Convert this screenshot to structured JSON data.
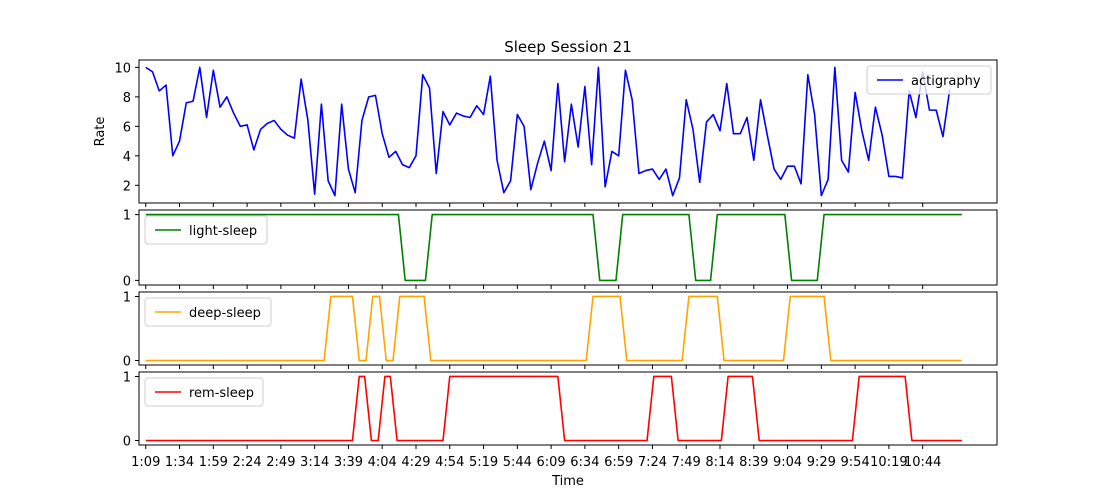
{
  "chart_data": {
    "type": "line",
    "title": "Sleep Session 21",
    "xlabel": "Time",
    "x_tick_labels": [
      "1:09",
      "1:34",
      "1:59",
      "2:24",
      "2:49",
      "3:14",
      "3:39",
      "4:04",
      "4:29",
      "4:54",
      "5:19",
      "5:44",
      "6:09",
      "6:34",
      "6:59",
      "7:24",
      "7:49",
      "8:14",
      "8:39",
      "9:04",
      "9:29",
      "9:54",
      "10:19",
      "10:44"
    ],
    "x_start": 0,
    "x_tick_step": 25,
    "xlim": [
      -5,
      630
    ],
    "panels": [
      {
        "ylabel": "Rate",
        "ylim": [
          0.8,
          10.5
        ],
        "yticks": [
          2,
          4,
          6,
          8,
          10
        ],
        "legend_position": "top-right",
        "series": [
          {
            "name": "actigraphy",
            "color": "#0000ff",
            "x_step": 5,
            "values": [
              10.0,
              9.7,
              8.4,
              8.8,
              4.0,
              5.0,
              7.6,
              7.7,
              10.0,
              6.6,
              9.8,
              7.3,
              8.0,
              6.9,
              6.0,
              6.1,
              4.4,
              5.8,
              6.2,
              6.4,
              5.8,
              5.4,
              5.2,
              9.2,
              6.4,
              1.4,
              7.5,
              2.3,
              1.3,
              7.5,
              3.1,
              1.5,
              6.4,
              8.0,
              8.1,
              5.5,
              3.9,
              4.3,
              3.4,
              3.2,
              4.0,
              9.5,
              8.6,
              2.8,
              7.0,
              6.1,
              6.9,
              6.7,
              6.6,
              7.4,
              6.8,
              9.4,
              3.7,
              1.5,
              2.3,
              6.8,
              6.0,
              1.7,
              3.5,
              5.0,
              3.0,
              8.9,
              3.6,
              7.5,
              4.6,
              8.7,
              3.4,
              10.0,
              1.9,
              4.3,
              4.0,
              9.8,
              7.8,
              2.8,
              3.0,
              3.1,
              2.4,
              3.1,
              1.3,
              2.5,
              7.8,
              5.8,
              2.2,
              6.3,
              6.8,
              5.7,
              8.9,
              5.5,
              5.5,
              6.6,
              3.7,
              7.8,
              5.4,
              3.1,
              2.4,
              3.3,
              3.3,
              2.1,
              9.5,
              6.8,
              1.3,
              2.4,
              10.0,
              3.7,
              2.9,
              8.3,
              5.7,
              3.7,
              7.3,
              5.4,
              2.6,
              2.6,
              2.5,
              8.4,
              6.6,
              9.7,
              7.1,
              7.1,
              5.3,
              8.5
            ]
          }
        ]
      },
      {
        "ylabel": "",
        "ylim": [
          -0.07,
          1.07
        ],
        "yticks": [
          0,
          1
        ],
        "legend_position": "top-left",
        "series": [
          {
            "name": "light-sleep",
            "color": "#008000",
            "points": [
              [
                0,
                1
              ],
              [
                187,
                1
              ],
              [
                192,
                0
              ],
              [
                207,
                0
              ],
              [
                212,
                1
              ],
              [
                331,
                1
              ],
              [
                336,
                0
              ],
              [
                348,
                0
              ],
              [
                353,
                1
              ],
              [
                402,
                1
              ],
              [
                407,
                0
              ],
              [
                418,
                0
              ],
              [
                423,
                1
              ],
              [
                473,
                1
              ],
              [
                478,
                0
              ],
              [
                497,
                0
              ],
              [
                502,
                1
              ],
              [
                604,
                1
              ]
            ]
          }
        ]
      },
      {
        "ylabel": "",
        "ylim": [
          -0.07,
          1.07
        ],
        "yticks": [
          0,
          1
        ],
        "legend_position": "top-left",
        "series": [
          {
            "name": "deep-sleep",
            "color": "#ffa500",
            "points": [
              [
                0,
                0
              ],
              [
                132,
                0
              ],
              [
                137,
                1
              ],
              [
                153,
                1
              ],
              [
                158,
                0
              ],
              [
                163,
                0
              ],
              [
                168,
                1
              ],
              [
                173,
                1
              ],
              [
                178,
                0
              ],
              [
                183,
                0
              ],
              [
                188,
                1
              ],
              [
                206,
                1
              ],
              [
                211,
                0
              ],
              [
                326,
                0
              ],
              [
                331,
                1
              ],
              [
                351,
                1
              ],
              [
                356,
                0
              ],
              [
                397,
                0
              ],
              [
                402,
                1
              ],
              [
                423,
                1
              ],
              [
                428,
                0
              ],
              [
                472,
                0
              ],
              [
                477,
                1
              ],
              [
                502,
                1
              ],
              [
                507,
                0
              ],
              [
                604,
                0
              ]
            ]
          }
        ]
      },
      {
        "ylabel": "",
        "ylim": [
          -0.07,
          1.07
        ],
        "yticks": [
          0,
          1
        ],
        "legend_position": "top-left",
        "series": [
          {
            "name": "rem-sleep",
            "color": "#ff0000",
            "points": [
              [
                0,
                0
              ],
              [
                153,
                0
              ],
              [
                158,
                1
              ],
              [
                162,
                1
              ],
              [
                167,
                0
              ],
              [
                172,
                0
              ],
              [
                177,
                1
              ],
              [
                181,
                1
              ],
              [
                186,
                0
              ],
              [
                220,
                0
              ],
              [
                225,
                1
              ],
              [
                305,
                1
              ],
              [
                310,
                0
              ],
              [
                371,
                0
              ],
              [
                376,
                1
              ],
              [
                389,
                1
              ],
              [
                394,
                0
              ],
              [
                426,
                0
              ],
              [
                431,
                1
              ],
              [
                449,
                1
              ],
              [
                454,
                0
              ],
              [
                523,
                0
              ],
              [
                528,
                1
              ],
              [
                562,
                1
              ],
              [
                567,
                0
              ],
              [
                604,
                0
              ]
            ]
          }
        ]
      }
    ]
  }
}
